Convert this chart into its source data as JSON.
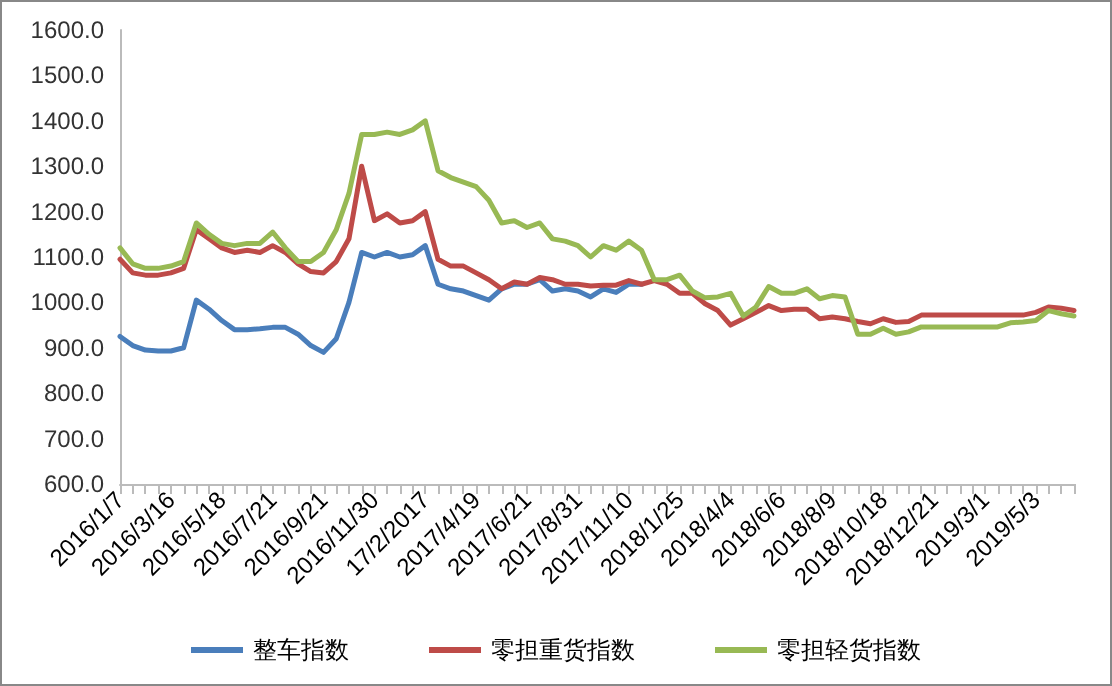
{
  "chart_data": {
    "type": "line",
    "categories": [
      "2016/1/7",
      null,
      null,
      null,
      "2016/3/16",
      null,
      null,
      null,
      "2016/5/18",
      null,
      null,
      null,
      "2016/7/21",
      null,
      null,
      null,
      "2016/9/21",
      null,
      null,
      null,
      "2016/11/30",
      null,
      null,
      null,
      "17/2/2017",
      null,
      null,
      null,
      "2017/4/19",
      null,
      null,
      null,
      "2017/6/21",
      null,
      null,
      null,
      "2017/8/31",
      null,
      null,
      null,
      "2017/11/10",
      null,
      null,
      null,
      "2018/1/25",
      null,
      null,
      null,
      "2018/4/4",
      null,
      null,
      null,
      "2018/6/6",
      null,
      null,
      null,
      "2018/8/9",
      null,
      null,
      null,
      "2018/10/18",
      null,
      null,
      null,
      "2018/12/21",
      null,
      null,
      null,
      "2019/3/1",
      null,
      null,
      null,
      "2019/5/3",
      null,
      null,
      null
    ],
    "series": [
      {
        "name": "整车指数",
        "color": "#4a7ebb",
        "values": [
          925,
          905,
          895,
          893,
          893,
          900,
          1005,
          985,
          960,
          940,
          940,
          942,
          945,
          945,
          930,
          905,
          890,
          920,
          1000,
          1110,
          1100,
          1110,
          1100,
          1105,
          1125,
          1040,
          1030,
          1025,
          1015,
          1005,
          1030,
          1040,
          1040,
          1050,
          1025,
          1030,
          1025,
          1012,
          1030,
          1022,
          1040,
          1040,
          null,
          null,
          null,
          null,
          null,
          null,
          null,
          null,
          null,
          null,
          null,
          null,
          null,
          null,
          null,
          null,
          null,
          null,
          null,
          null,
          null,
          null,
          null,
          null,
          null,
          null,
          null,
          null,
          null,
          null,
          null,
          null,
          null,
          null
        ]
      },
      {
        "name": "零担重货指数",
        "color": "#be4b48",
        "values": [
          1095,
          1065,
          1060,
          1060,
          1065,
          1075,
          1160,
          1140,
          1120,
          1110,
          1115,
          1110,
          1125,
          1110,
          1085,
          1068,
          1065,
          1090,
          1140,
          1300,
          1180,
          1195,
          1175,
          1180,
          1200,
          1095,
          1080,
          1080,
          1065,
          1050,
          1030,
          1045,
          1040,
          1055,
          1050,
          1040,
          1040,
          1036,
          1038,
          1038,
          1048,
          1040,
          1048,
          1040,
          1020,
          1020,
          997,
          982,
          950,
          964,
          978,
          993,
          982,
          985,
          985,
          964,
          968,
          964,
          958,
          953,
          964,
          956,
          958,
          972,
          972,
          972,
          972,
          972,
          972,
          972,
          972,
          972,
          978,
          990,
          987,
          982
        ]
      },
      {
        "name": "零担轻货指数",
        "color": "#98b954",
        "values": [
          1120,
          1085,
          1075,
          1075,
          1080,
          1090,
          1175,
          1150,
          1130,
          1125,
          1130,
          1130,
          1155,
          1120,
          1090,
          1090,
          1110,
          1160,
          1240,
          1370,
          1370,
          1375,
          1370,
          1380,
          1400,
          1290,
          1275,
          1265,
          1255,
          1225,
          1175,
          1180,
          1165,
          1175,
          1140,
          1135,
          1125,
          1100,
          1125,
          1115,
          1135,
          1115,
          1050,
          1050,
          1060,
          1025,
          1010,
          1012,
          1020,
          970,
          990,
          1035,
          1020,
          1020,
          1030,
          1008,
          1015,
          1012,
          930,
          930,
          943,
          930,
          935,
          946,
          946,
          946,
          946,
          946,
          946,
          946,
          955,
          957,
          960,
          982,
          975,
          970
        ]
      }
    ],
    "ylim": [
      600,
      1600
    ],
    "yticks": [
      {
        "value": 600,
        "label": "600.0"
      },
      {
        "value": 700,
        "label": "700.0"
      },
      {
        "value": 800,
        "label": "800.0"
      },
      {
        "value": 900,
        "label": "900.0"
      },
      {
        "value": 1000,
        "label": "1000.0"
      },
      {
        "value": 1100,
        "label": "1100.0"
      },
      {
        "value": 1200,
        "label": "1200.0"
      },
      {
        "value": 1300,
        "label": "1300.0"
      },
      {
        "value": 1400,
        "label": "1400.0"
      },
      {
        "value": 1500,
        "label": "1500.0"
      },
      {
        "value": 1600,
        "label": "1600.0"
      }
    ],
    "grid": false,
    "legend": "bottom",
    "marker": "none",
    "line_style": "solid"
  }
}
